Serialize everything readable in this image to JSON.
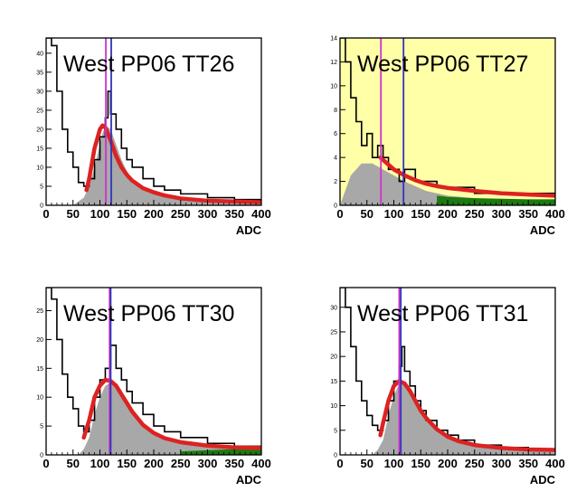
{
  "figure": {
    "colors": {
      "panel_background_default": "#ffffff",
      "panel_background_highlight": "#ffffa8",
      "filled_histogram": "#a8a8a8",
      "green_histogram": "#1c7a10",
      "data_line": "#000000",
      "fit_curve": "#dd2222",
      "magenta_marker": "#cc33cc",
      "blue_marker": "#3333bb"
    }
  },
  "chart_data": [
    {
      "type": "histogram",
      "title": "West PP06 TT26",
      "xlabel": "ADC",
      "xlim": [
        0,
        400
      ],
      "ylim": [
        0,
        44
      ],
      "x_ticks": [
        0,
        50,
        100,
        150,
        200,
        250,
        300,
        350,
        400
      ],
      "x_tick_labels": [
        "0",
        "50",
        "100",
        "150",
        "200",
        "250",
        "300",
        "350",
        "400"
      ],
      "y_ticks": [
        0,
        5,
        10,
        15,
        20,
        25,
        30,
        35,
        40
      ],
      "y_tick_labels": [
        "0",
        "5",
        "10",
        "15",
        "20",
        "25",
        "30",
        "35",
        "40"
      ],
      "background": "#ffffff",
      "data_x": [
        0,
        10,
        20,
        30,
        40,
        50,
        60,
        70,
        80,
        90,
        100,
        110,
        115,
        120,
        130,
        140,
        150,
        160,
        180,
        200,
        220,
        250,
        300,
        350,
        400
      ],
      "data_y": [
        44,
        42,
        30,
        20,
        14,
        10,
        6,
        5,
        7,
        12,
        18,
        23,
        30,
        24,
        20,
        15,
        12,
        10,
        7,
        5,
        4,
        3,
        2,
        1.5,
        1
      ],
      "fit_x": [
        75,
        80,
        90,
        100,
        105,
        110,
        120,
        130,
        140,
        150,
        160,
        180,
        200,
        220,
        250,
        300,
        350,
        400
      ],
      "fit_y": [
        4,
        7,
        15,
        20,
        21,
        20.5,
        17,
        13,
        10,
        8,
        6.5,
        4.5,
        3.4,
        2.6,
        1.8,
        1.2,
        1,
        0.8
      ],
      "filled_x": [
        50,
        60,
        70,
        80,
        90,
        100,
        105,
        110,
        120,
        130,
        140,
        150,
        160,
        180,
        200,
        220,
        250,
        300,
        350,
        400
      ],
      "filled_y": [
        0,
        1,
        2,
        5,
        10,
        16,
        19,
        21,
        20,
        16,
        12,
        9,
        7,
        5,
        4,
        3,
        2,
        1.5,
        1,
        1
      ],
      "green_x": [],
      "green_y": [],
      "markers": [
        {
          "x": 111,
          "color": "magenta"
        },
        {
          "x": 121,
          "color": "blue"
        }
      ]
    },
    {
      "type": "histogram",
      "title": "West PP06 TT27",
      "xlabel": "ADC",
      "xlim": [
        0,
        400
      ],
      "ylim": [
        0,
        14
      ],
      "x_ticks": [
        0,
        50,
        100,
        150,
        200,
        250,
        300,
        350,
        400
      ],
      "x_tick_labels": [
        "0",
        "50",
        "100",
        "150",
        "200",
        "250",
        "300",
        "350",
        "400"
      ],
      "y_ticks": [
        0,
        2,
        4,
        6,
        8,
        10,
        12,
        14
      ],
      "y_tick_labels": [
        "0",
        "2",
        "4",
        "6",
        "8",
        "10",
        "12",
        "14"
      ],
      "background": "#ffffa8",
      "data_x": [
        0,
        10,
        20,
        30,
        40,
        50,
        60,
        70,
        80,
        90,
        100,
        110,
        120,
        140,
        160,
        180,
        200,
        250,
        300,
        350,
        400
      ],
      "data_y": [
        14,
        12,
        9,
        7,
        5,
        6,
        4,
        5,
        4,
        3,
        3,
        2,
        3,
        2,
        2,
        1.5,
        1.5,
        1,
        1,
        1,
        1
      ],
      "fit_x": [
        75,
        90,
        100,
        120,
        140,
        160,
        180,
        200,
        250,
        300,
        350,
        400
      ],
      "fit_y": [
        4,
        3.4,
        3,
        2.5,
        2.1,
        1.8,
        1.6,
        1.45,
        1.2,
        1.0,
        0.9,
        0.8
      ],
      "filled_x": [
        0,
        20,
        40,
        60,
        80,
        100,
        120,
        140,
        160,
        180,
        200,
        250,
        300,
        350,
        400
      ],
      "filled_y": [
        0,
        2.5,
        3.5,
        3.5,
        3,
        2.5,
        2,
        1.6,
        1.2,
        1,
        0.8,
        0.6,
        0.5,
        0.4,
        0.3
      ],
      "green_x": [
        180,
        200,
        250,
        300,
        350,
        400
      ],
      "green_y": [
        0.8,
        0.7,
        0.6,
        0.55,
        0.5,
        0.5
      ],
      "markers": [
        {
          "x": 76,
          "color": "magenta"
        },
        {
          "x": 118,
          "color": "blue"
        }
      ]
    },
    {
      "type": "histogram",
      "title": "West PP06 TT30",
      "xlabel": "ADC",
      "xlim": [
        0,
        400
      ],
      "ylim": [
        0,
        29
      ],
      "x_ticks": [
        0,
        50,
        100,
        150,
        200,
        250,
        300,
        350,
        400
      ],
      "x_tick_labels": [
        "0",
        "50",
        "100",
        "150",
        "200",
        "250",
        "300",
        "350",
        "400"
      ],
      "y_ticks": [
        0,
        5,
        10,
        15,
        20,
        25
      ],
      "y_tick_labels": [
        "0",
        "5",
        "10",
        "15",
        "20",
        "25"
      ],
      "background": "#ffffff",
      "data_x": [
        0,
        10,
        20,
        30,
        40,
        50,
        60,
        70,
        80,
        90,
        100,
        110,
        120,
        130,
        140,
        150,
        160,
        180,
        200,
        220,
        250,
        300,
        350,
        400
      ],
      "data_y": [
        29,
        27,
        20,
        14,
        10,
        8,
        5,
        4,
        6,
        10,
        13,
        15,
        19,
        15,
        13,
        11,
        9,
        7,
        5,
        4,
        3,
        2,
        1.5,
        1.5
      ],
      "fit_x": [
        70,
        80,
        90,
        100,
        110,
        120,
        130,
        140,
        150,
        160,
        180,
        200,
        220,
        250,
        300,
        350,
        400
      ],
      "fit_y": [
        3,
        6,
        10,
        12,
        13,
        12.8,
        12,
        10.5,
        9,
        7.5,
        5.2,
        3.8,
        2.9,
        2.2,
        1.6,
        1.3,
        1.2
      ],
      "filled_x": [
        60,
        70,
        80,
        90,
        100,
        110,
        120,
        130,
        140,
        150,
        160,
        180,
        200,
        220,
        250,
        300,
        350,
        400
      ],
      "filled_y": [
        0,
        1,
        3,
        7,
        10,
        12,
        12.5,
        12,
        10.5,
        9,
        7.5,
        5.2,
        3.8,
        2.9,
        2.2,
        1.6,
        1.3,
        1.2
      ],
      "green_x": [
        250,
        300,
        350,
        400
      ],
      "green_y": [
        0.6,
        0.8,
        1,
        1
      ],
      "markers": [
        {
          "x": 118,
          "color": "magenta"
        },
        {
          "x": 120,
          "color": "blue"
        }
      ]
    },
    {
      "type": "histogram",
      "title": "West PP06 TT31",
      "xlabel": "ADC",
      "xlim": [
        0,
        400
      ],
      "ylim": [
        0,
        34
      ],
      "x_ticks": [
        0,
        50,
        100,
        150,
        200,
        250,
        300,
        350,
        400
      ],
      "x_tick_labels": [
        "0",
        "50",
        "100",
        "150",
        "200",
        "250",
        "300",
        "350",
        "400"
      ],
      "y_ticks": [
        0,
        5,
        10,
        15,
        20,
        25,
        30
      ],
      "y_tick_labels": [
        "0",
        "5",
        "10",
        "15",
        "20",
        "25",
        "30"
      ],
      "background": "#ffffff",
      "data_x": [
        0,
        10,
        20,
        30,
        40,
        50,
        60,
        70,
        80,
        90,
        100,
        110,
        115,
        120,
        130,
        140,
        150,
        160,
        180,
        200,
        220,
        250,
        300,
        350,
        400
      ],
      "data_y": [
        34,
        30,
        22,
        15,
        11,
        8,
        6,
        5,
        7,
        11,
        15,
        18,
        22,
        17,
        14,
        11,
        9,
        7,
        5,
        4,
        3,
        2,
        1.5,
        1.2,
        1
      ],
      "fit_x": [
        75,
        80,
        90,
        100,
        110,
        120,
        130,
        140,
        150,
        160,
        180,
        200,
        220,
        250,
        300,
        350,
        400
      ],
      "fit_y": [
        4,
        6.5,
        11,
        14,
        15,
        14.5,
        13,
        11,
        9,
        7.5,
        5.2,
        3.7,
        2.8,
        2,
        1.4,
        1.1,
        1
      ],
      "filled_x": [
        60,
        70,
        80,
        90,
        100,
        110,
        120,
        130,
        140,
        150,
        160,
        180,
        200,
        220,
        250,
        300,
        350,
        400
      ],
      "filled_y": [
        0,
        1,
        3,
        8,
        12,
        14.5,
        14.5,
        13,
        11,
        9,
        7.5,
        5.2,
        3.7,
        2.8,
        2,
        1.4,
        1.1,
        1
      ],
      "green_x": [],
      "green_y": [],
      "markers": [
        {
          "x": 110,
          "color": "magenta"
        },
        {
          "x": 113,
          "color": "blue"
        }
      ]
    }
  ]
}
